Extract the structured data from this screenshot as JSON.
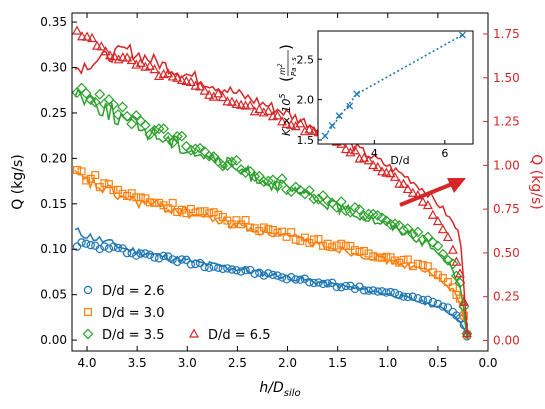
{
  "chart_data": [
    {
      "type": "scatter",
      "xlabel_main": "h/D",
      "xlabel_sub": "silo",
      "ylabel_left": "Q (kg/s)",
      "ylabel_right": "Q (kg/s)",
      "xlim": [
        4.15,
        0.0
      ],
      "ylim_left": [
        -0.012,
        0.36
      ],
      "ylim_right": [
        -0.06,
        1.87
      ],
      "x_ticks": [
        4.0,
        3.5,
        3.0,
        2.5,
        2.0,
        1.5,
        1.0,
        0.5,
        0.0
      ],
      "x_tick_labels": [
        "4.0",
        "3.5",
        "3.0",
        "2.5",
        "2.0",
        "1.5",
        "1.0",
        "0.5",
        "0.0"
      ],
      "y_left_ticks": [
        0.0,
        0.05,
        0.1,
        0.15,
        0.2,
        0.25,
        0.3,
        0.35
      ],
      "y_left_tick_labels": [
        "0.00",
        "0.05",
        "0.10",
        "0.15",
        "0.20",
        "0.25",
        "0.30",
        "0.35"
      ],
      "y_right_ticks": [
        0.0,
        0.25,
        0.5,
        0.75,
        1.0,
        1.25,
        1.5,
        1.75
      ],
      "y_right_tick_labels": [
        "0.00",
        "0.25",
        "0.50",
        "0.75",
        "1.00",
        "1.25",
        "1.50",
        "1.75"
      ],
      "grid": false,
      "legend_position": "lower-left",
      "series": [
        {
          "name": "D/d = 2.6",
          "marker": "circle",
          "color": "#1f77b4",
          "axis": "left",
          "points_x": [
            4.1,
            3.6,
            3.1,
            2.6,
            2.1,
            1.6,
            1.1,
            0.8,
            0.6,
            0.45,
            0.35,
            0.28,
            0.24,
            0.21
          ],
          "points_y": [
            0.106,
            0.098,
            0.088,
            0.079,
            0.07,
            0.062,
            0.054,
            0.048,
            0.043,
            0.038,
            0.032,
            0.025,
            0.016,
            0.004
          ],
          "line_x": [
            4.12,
            3.6,
            3.1,
            2.6,
            2.1,
            1.6,
            1.1,
            0.8,
            0.6,
            0.45,
            0.35,
            0.28,
            0.24,
            0.22,
            0.2
          ],
          "line_y": [
            0.12,
            0.1,
            0.089,
            0.08,
            0.071,
            0.062,
            0.053,
            0.046,
            0.04,
            0.034,
            0.028,
            0.022,
            0.014,
            0.006,
            0.001
          ]
        },
        {
          "name": "D/d = 3.0",
          "marker": "square",
          "color": "#ff7f0e",
          "axis": "left",
          "points_x": [
            4.1,
            3.6,
            3.1,
            2.6,
            2.1,
            1.6,
            1.1,
            0.8,
            0.6,
            0.45,
            0.35,
            0.28,
            0.24,
            0.21
          ],
          "points_y": [
            0.186,
            0.16,
            0.146,
            0.133,
            0.119,
            0.106,
            0.094,
            0.086,
            0.079,
            0.07,
            0.058,
            0.044,
            0.028,
            0.006
          ],
          "line_x": [
            4.12,
            3.6,
            3.1,
            2.6,
            2.1,
            1.6,
            1.1,
            0.8,
            0.6,
            0.45,
            0.35,
            0.28,
            0.24,
            0.22,
            0.2
          ],
          "line_y": [
            0.18,
            0.155,
            0.143,
            0.129,
            0.116,
            0.103,
            0.09,
            0.082,
            0.074,
            0.065,
            0.055,
            0.042,
            0.026,
            0.012,
            0.002
          ]
        },
        {
          "name": "D/d = 3.5",
          "marker": "diamond",
          "color": "#2ca02c",
          "axis": "left",
          "points_x": [
            4.1,
            3.6,
            3.1,
            2.6,
            2.1,
            1.6,
            1.1,
            0.8,
            0.6,
            0.45,
            0.35,
            0.28,
            0.24,
            0.21
          ],
          "points_y": [
            0.28,
            0.245,
            0.219,
            0.196,
            0.174,
            0.154,
            0.135,
            0.122,
            0.11,
            0.097,
            0.082,
            0.062,
            0.036,
            0.007
          ],
          "line_x": [
            4.12,
            3.6,
            3.1,
            2.6,
            2.1,
            1.6,
            1.1,
            0.8,
            0.6,
            0.45,
            0.35,
            0.28,
            0.24,
            0.22,
            0.2
          ],
          "line_y": [
            0.275,
            0.24,
            0.216,
            0.193,
            0.17,
            0.15,
            0.131,
            0.118,
            0.105,
            0.092,
            0.078,
            0.058,
            0.035,
            0.015,
            0.003
          ]
        },
        {
          "name": "D/d = 6.5",
          "marker": "triangle",
          "color": "#d62728",
          "axis": "right",
          "points_x": [
            4.1,
            3.9,
            3.6,
            3.1,
            2.6,
            2.1,
            1.6,
            1.1,
            0.8,
            0.6,
            0.45,
            0.35,
            0.28,
            0.24,
            0.21
          ],
          "points_y": [
            1.76,
            1.68,
            1.6,
            1.49,
            1.38,
            1.27,
            1.16,
            0.99,
            0.87,
            0.76,
            0.64,
            0.52,
            0.38,
            0.22,
            0.04
          ],
          "line_x": [
            4.12,
            3.9,
            3.6,
            3.1,
            2.6,
            2.1,
            1.6,
            1.1,
            0.8,
            0.6,
            0.45,
            0.35,
            0.3,
            0.27,
            0.25,
            0.23,
            0.21,
            0.2
          ],
          "line_y": [
            1.55,
            1.6,
            1.66,
            1.54,
            1.43,
            1.32,
            1.19,
            1.03,
            0.93,
            0.84,
            0.75,
            0.67,
            0.62,
            0.55,
            0.4,
            0.22,
            0.08,
            0.03
          ]
        }
      ]
    },
    {
      "type": "line",
      "xlabel": "D/d",
      "ylabel_main": "K × 10",
      "ylabel_sup": "5",
      "ylabel_unit_num": "m",
      "ylabel_unit_num_sup": "2",
      "ylabel_unit_den": "Pa · s",
      "xlim": [
        2.4,
        6.8
      ],
      "ylim": [
        1.45,
        2.85
      ],
      "x_ticks": [
        4,
        6
      ],
      "x_tick_labels": [
        "4",
        "6"
      ],
      "y_ticks": [
        1.5,
        2.0,
        2.5
      ],
      "y_tick_labels": [
        "1.5",
        "2.0",
        "2.5"
      ],
      "color": "#1f77b4",
      "marker": "x",
      "points_x": [
        2.6,
        2.8,
        3.0,
        3.3,
        3.5
      ],
      "points_y": [
        1.55,
        1.68,
        1.8,
        1.92,
        2.07
      ],
      "dotted_x": [
        2.6,
        3.5,
        6.5
      ],
      "dotted_y": [
        1.55,
        2.07,
        2.8
      ],
      "end_marker_x": 6.5,
      "end_marker_y": 2.8
    }
  ]
}
